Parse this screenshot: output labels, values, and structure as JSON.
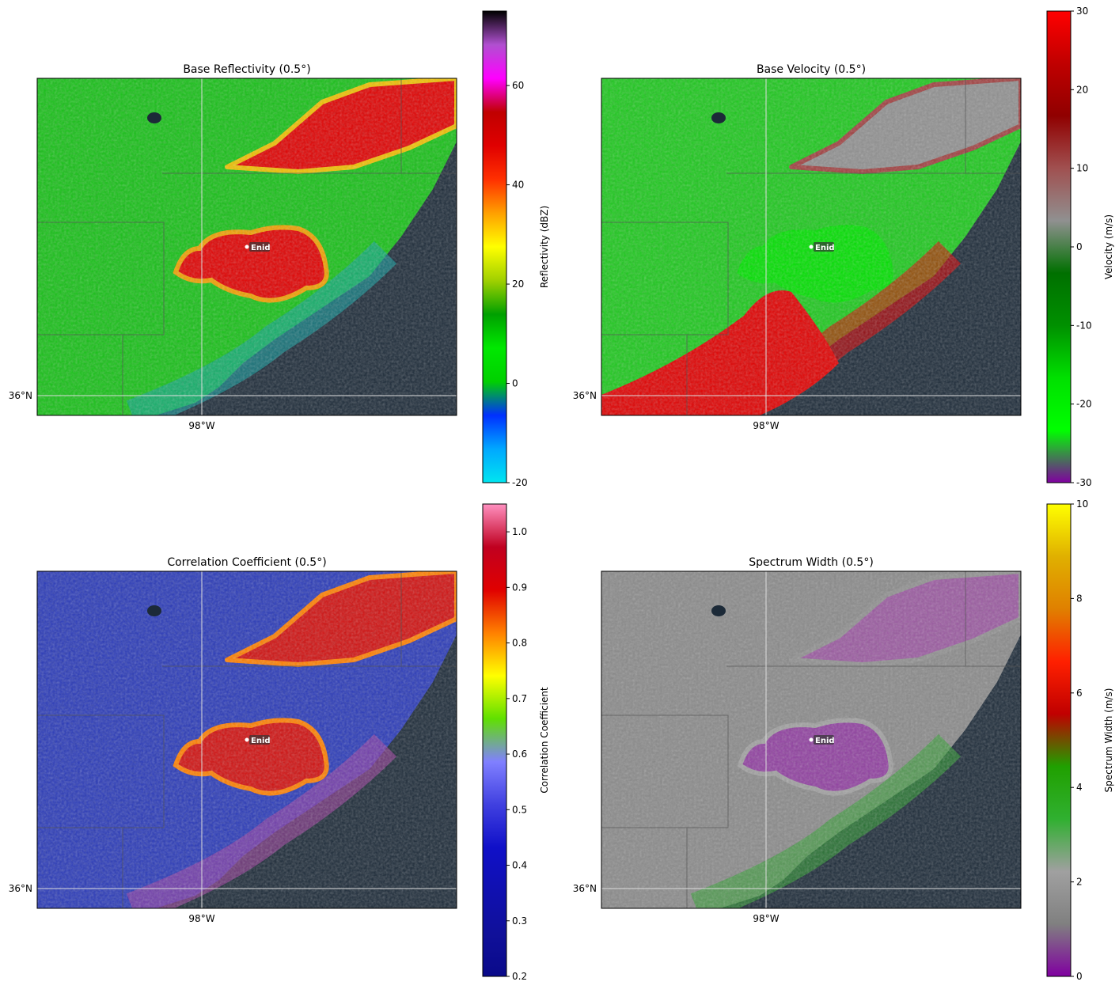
{
  "chart_data": [
    {
      "type": "radar",
      "title": "Base Reflectivity (0.5°)",
      "colorbar_label": "Reflectivity (dBZ)",
      "clim": [
        -20,
        75
      ],
      "cticks": [
        -20,
        0,
        20,
        40,
        60
      ],
      "colormap": [
        "#00e5f0",
        "#00a8ff",
        "#0030ff",
        "#00d000",
        "#00e800",
        "#00a000",
        "#a0d000",
        "#ffff00",
        "#ffa000",
        "#ff3000",
        "#e00000",
        "#c00000",
        "#ff00ff",
        "#b050d0",
        "#000000"
      ],
      "lat_label": "36°N",
      "lon_label": "98°W",
      "city": "Enid"
    },
    {
      "type": "radar",
      "title": "Base Velocity (0.5°)",
      "colorbar_label": "Velocity (m/s)",
      "clim": [
        -30,
        30
      ],
      "cticks": [
        -30,
        -20,
        -10,
        0,
        10,
        20,
        30
      ],
      "colormap": [
        "#8000a0",
        "#00ff00",
        "#00e000",
        "#009000",
        "#007000",
        "#909090",
        "#a05050",
        "#900000",
        "#c00000",
        "#ff0000"
      ],
      "lat_label": "36°N",
      "lon_label": "98°W",
      "city": "Enid"
    },
    {
      "type": "radar",
      "title": "Correlation Coefficient (0.5°)",
      "colorbar_label": "Correlation Coefficient",
      "clim": [
        0.2,
        1.05
      ],
      "cticks": [
        0.2,
        0.3,
        0.4,
        0.5,
        0.6,
        0.7,
        0.8,
        0.9,
        {
          "value": 1,
          "label": "1.0"
        }
      ],
      "colormap": [
        "#0a0a8a",
        "#10109a",
        "#1010b0",
        "#1010c8",
        "#4040e0",
        "#8080ff",
        "#60e000",
        "#ffff00",
        "#ff8000",
        "#e00000",
        "#c00020",
        "#ff90c0"
      ],
      "lat_label": "36°N",
      "lon_label": "98°W",
      "city": "Enid"
    },
    {
      "type": "radar",
      "title": "Spectrum Width (0.5°)",
      "colorbar_label": "Spectrum Width (m/s)",
      "clim": [
        0,
        10
      ],
      "cticks": [
        0,
        2,
        4,
        6,
        8,
        10
      ],
      "colormap": [
        "#8000a0",
        "#808080",
        "#a0a0a0",
        "#30b030",
        "#20a000",
        "#c00000",
        "#ff2000",
        "#e08000",
        "#e0b000",
        "#ffff00"
      ],
      "lat_label": "36°N",
      "lon_label": "98°W",
      "city": "Enid"
    }
  ]
}
